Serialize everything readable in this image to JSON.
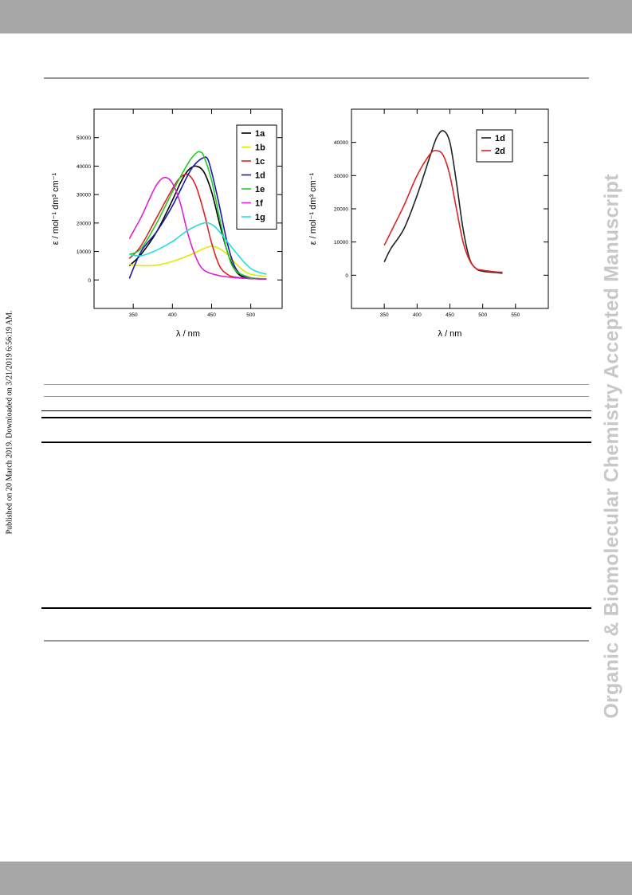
{
  "side_note": "Published on 20 March 2019. Downloaded on 3/21/2019 6:56:19 AM.",
  "watermark": "Organic & Biomolecular Chemistry Accepted Manuscript",
  "chart_data": [
    {
      "type": "line",
      "xlabel": "λ / nm",
      "ylabel": "ε / mol⁻¹ dm³ cm⁻¹",
      "xlim": [
        300,
        540
      ],
      "ylim": [
        -10000,
        60000
      ],
      "xticks": [
        350,
        400,
        450,
        500
      ],
      "yticks": [
        0,
        10000,
        20000,
        30000,
        40000,
        50000
      ],
      "legend_position": "top-right",
      "series": [
        {
          "name": "1a",
          "color": "#000000",
          "x": [
            345,
            360,
            380,
            400,
            410,
            420,
            430,
            440,
            450,
            460,
            470,
            480,
            490,
            500,
            520
          ],
          "y": [
            5000,
            9000,
            17000,
            28000,
            34000,
            38500,
            40000,
            38000,
            31000,
            20000,
            10000,
            3500,
            1000,
            500,
            300
          ]
        },
        {
          "name": "1b",
          "color": "#e6e600",
          "x": [
            345,
            360,
            380,
            400,
            420,
            440,
            450,
            460,
            470,
            480,
            490,
            500,
            520
          ],
          "y": [
            5500,
            5000,
            5200,
            6500,
            8500,
            11000,
            11800,
            11000,
            9000,
            6000,
            3500,
            2000,
            1200
          ]
        },
        {
          "name": "1c",
          "color": "#dd2222",
          "x": [
            345,
            360,
            380,
            400,
            410,
            420,
            430,
            440,
            450,
            460,
            470,
            480,
            500,
            520
          ],
          "y": [
            7500,
            12000,
            22000,
            32000,
            36000,
            37000,
            33000,
            24000,
            13000,
            5000,
            2000,
            1000,
            500,
            300
          ]
        },
        {
          "name": "1d",
          "color": "#1a1aaa",
          "x": [
            345,
            360,
            380,
            400,
            420,
            430,
            440,
            445,
            450,
            460,
            470,
            480,
            490,
            500,
            520
          ],
          "y": [
            500,
            10000,
            17000,
            26000,
            37000,
            41000,
            43000,
            42500,
            38000,
            26000,
            13000,
            4500,
            1500,
            700,
            300
          ]
        },
        {
          "name": "1e",
          "color": "#22cc22",
          "x": [
            345,
            360,
            380,
            400,
            420,
            430,
            435,
            440,
            450,
            460,
            470,
            480,
            500,
            520
          ],
          "y": [
            9000,
            11000,
            20000,
            31000,
            41000,
            44500,
            45000,
            43500,
            35000,
            22000,
            10000,
            3500,
            800,
            300
          ]
        },
        {
          "name": "1f",
          "color": "#dd22cc",
          "x": [
            345,
            360,
            370,
            380,
            390,
            400,
            410,
            420,
            430,
            440,
            460,
            480,
            500,
            520
          ],
          "y": [
            14500,
            22000,
            28000,
            33500,
            36000,
            34000,
            27000,
            16000,
            8000,
            3500,
            1500,
            800,
            500,
            300
          ]
        },
        {
          "name": "1g",
          "color": "#22dddd",
          "x": [
            345,
            360,
            380,
            400,
            420,
            440,
            450,
            460,
            480,
            500,
            520
          ],
          "y": [
            9000,
            8500,
            10500,
            13500,
            17500,
            20000,
            19500,
            17000,
            10000,
            4000,
            2000
          ]
        }
      ]
    },
    {
      "type": "line",
      "xlabel": "λ / nm",
      "ylabel": "ε / mol⁻¹ dm³ cm⁻¹",
      "xlim": [
        300,
        600
      ],
      "ylim": [
        -10000,
        50000
      ],
      "xticks": [
        350,
        400,
        450,
        500,
        550
      ],
      "yticks": [
        0,
        10000,
        20000,
        30000,
        40000
      ],
      "legend_position": "top-right",
      "series": [
        {
          "name": "1d",
          "color": "#222222",
          "x": [
            350,
            360,
            380,
            400,
            420,
            430,
            440,
            450,
            460,
            470,
            480,
            490,
            500,
            520,
            530
          ],
          "y": [
            4000,
            8000,
            14000,
            24000,
            36000,
            41500,
            43500,
            40000,
            28000,
            14000,
            5000,
            2000,
            1200,
            800,
            600
          ]
        },
        {
          "name": "2d",
          "color": "#dd2222",
          "x": [
            350,
            360,
            380,
            400,
            420,
            430,
            440,
            450,
            460,
            470,
            480,
            490,
            500,
            520,
            530
          ],
          "y": [
            9000,
            13000,
            21000,
            30000,
            36500,
            37500,
            36000,
            30000,
            20000,
            10000,
            4500,
            2000,
            1500,
            1000,
            900
          ]
        }
      ]
    }
  ]
}
